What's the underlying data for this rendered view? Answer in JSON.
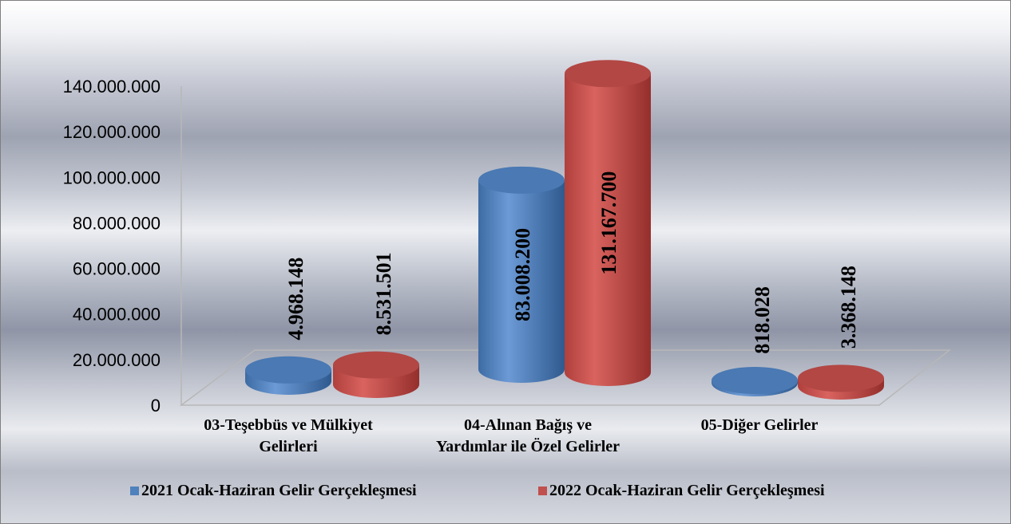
{
  "chart_data": {
    "type": "bar",
    "title": "",
    "xlabel": "",
    "ylabel": "",
    "ylim": [
      0,
      140000000
    ],
    "y_ticks": [
      "0",
      "20.000.000",
      "40.000.000",
      "60.000.000",
      "80.000.000",
      "100.000.000",
      "120.000.000",
      "140.000.000"
    ],
    "categories": [
      [
        "03-Teşebbüs ve Mülkiyet",
        "Gelirleri"
      ],
      [
        "04-Alınan Bağış ve",
        "Yardımlar ile Özel Gelirler"
      ],
      [
        "05-Diğer Gelirler"
      ]
    ],
    "series": [
      {
        "name": "2021 Ocak-Haziran Gelir Gerçekleşmesi",
        "color": "#4f81bd",
        "values": [
          4968148,
          83008200,
          818028
        ],
        "labels": [
          "4.968.148",
          "83.008.200",
          "818.028"
        ]
      },
      {
        "name": "2022 Ocak-Haziran Gelir Gerçekleşmesi",
        "color": "#c0504d",
        "values": [
          8531501,
          131167700,
          3368148
        ],
        "labels": [
          "8.531.501",
          "131.167.700",
          "3.368.148"
        ]
      }
    ],
    "grid": false,
    "legend": "bottom",
    "style": "3d-cylinder"
  }
}
